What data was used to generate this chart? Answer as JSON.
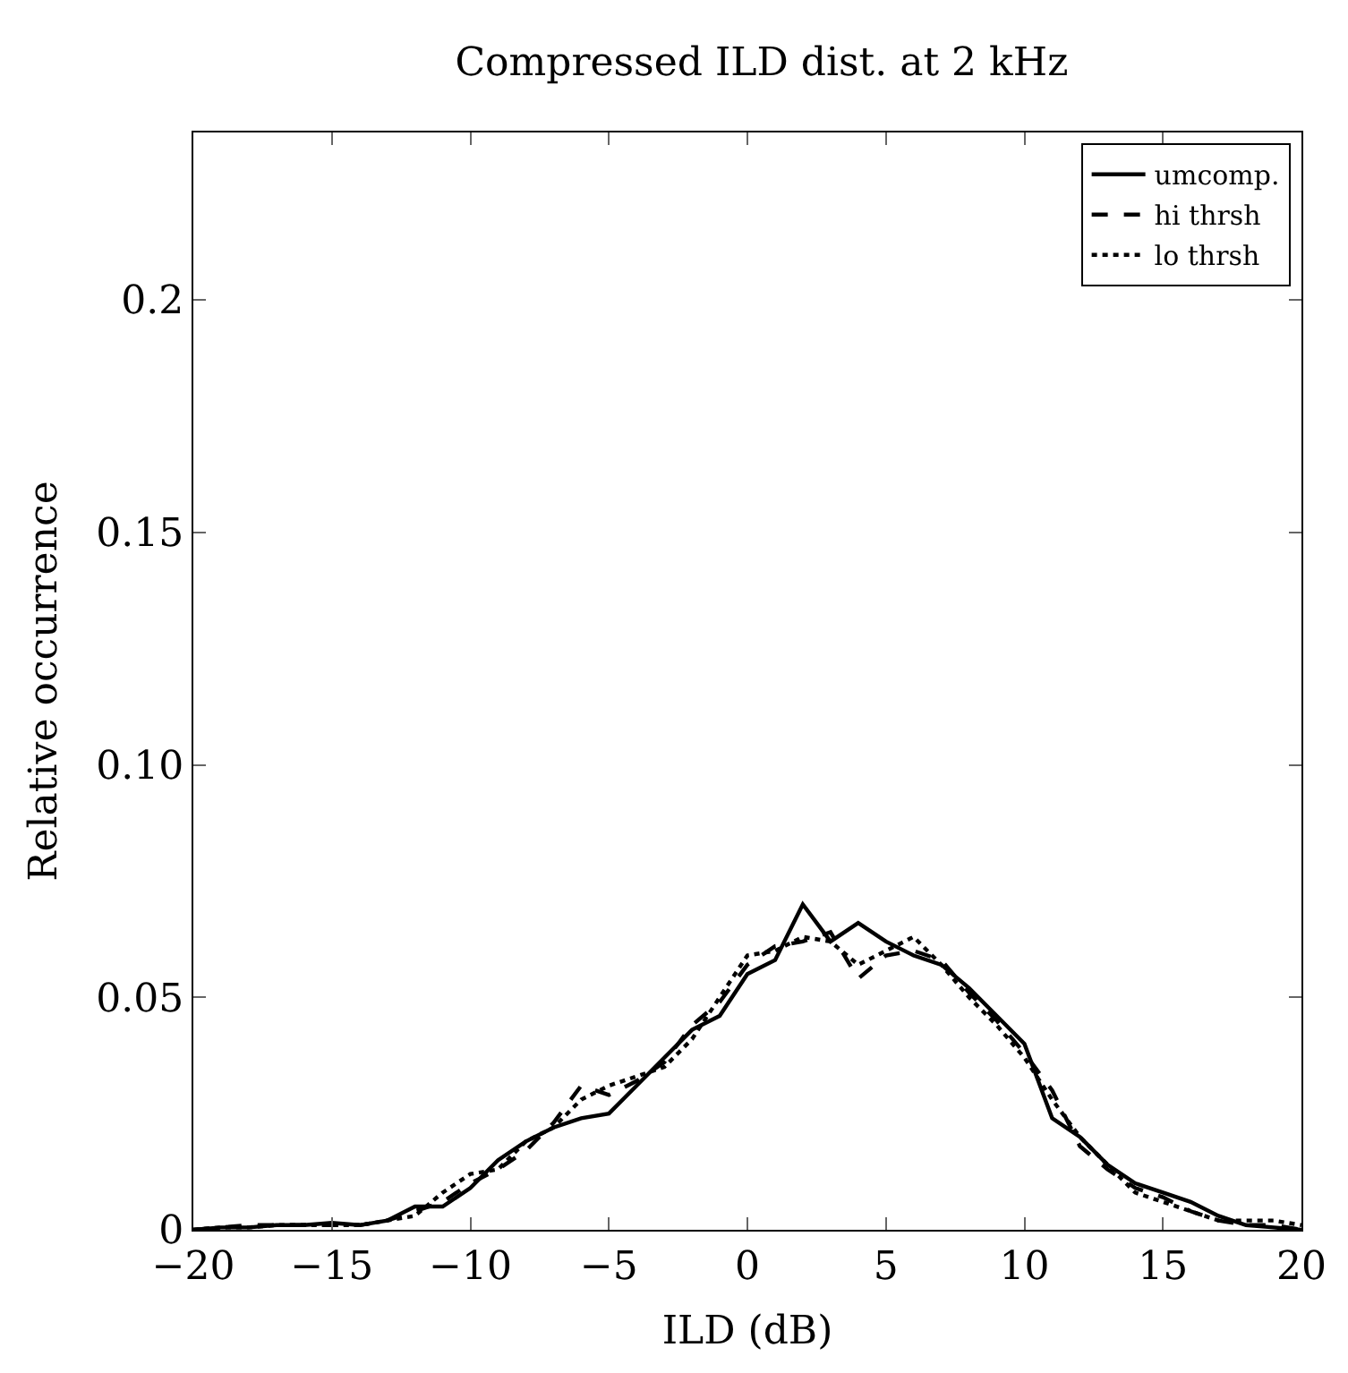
{
  "chart_data": {
    "type": "line",
    "title": "Compressed ILD dist. at 2 kHz",
    "xlabel": "ILD (dB)",
    "ylabel": "Relative occurrence",
    "x": [
      -20,
      -19,
      -18,
      -17,
      -16,
      -15,
      -14,
      -13,
      -12,
      -11,
      -10,
      -9,
      -8,
      -7,
      -6,
      -5,
      -4,
      -3,
      -2,
      -1,
      0,
      1,
      2,
      3,
      4,
      5,
      6,
      7,
      8,
      9,
      10,
      11,
      12,
      13,
      14,
      15,
      16,
      17,
      18,
      19,
      20
    ],
    "series": [
      {
        "name": "umcomp.",
        "color": "#000000",
        "line_style": "solid",
        "values": [
          0,
          0.0005,
          0.0005,
          0.001,
          0.001,
          0.0015,
          0.001,
          0.002,
          0.005,
          0.005,
          0.009,
          0.015,
          0.019,
          0.022,
          0.024,
          0.025,
          0.031,
          0.037,
          0.043,
          0.046,
          0.055,
          0.058,
          0.07,
          0.062,
          0.066,
          0.062,
          0.059,
          0.057,
          0.052,
          0.046,
          0.04,
          0.024,
          0.02,
          0.014,
          0.01,
          0.008,
          0.006,
          0.003,
          0.001,
          0.0005,
          0
        ]
      },
      {
        "name": "hi thrsh",
        "color": "#000000",
        "line_style": "dashed",
        "values": [
          0,
          0.0005,
          0.001,
          0.001,
          0.001,
          0.001,
          0.001,
          0.002,
          0.004,
          0.006,
          0.01,
          0.013,
          0.017,
          0.023,
          0.031,
          0.029,
          0.032,
          0.036,
          0.044,
          0.049,
          0.057,
          0.061,
          0.062,
          0.064,
          0.054,
          0.059,
          0.06,
          0.058,
          0.051,
          0.045,
          0.038,
          0.03,
          0.018,
          0.013,
          0.009,
          0.007,
          0.004,
          0.002,
          0.001,
          0.001,
          0
        ]
      },
      {
        "name": "lo thrsh",
        "color": "#000000",
        "line_style": "dotted",
        "values": [
          0,
          0.0005,
          0.0005,
          0.001,
          0.001,
          0.001,
          0.001,
          0.002,
          0.003,
          0.008,
          0.012,
          0.013,
          0.019,
          0.022,
          0.028,
          0.031,
          0.033,
          0.035,
          0.041,
          0.05,
          0.059,
          0.06,
          0.063,
          0.062,
          0.057,
          0.06,
          0.063,
          0.057,
          0.05,
          0.044,
          0.037,
          0.028,
          0.02,
          0.014,
          0.008,
          0.006,
          0.004,
          0.002,
          0.002,
          0.002,
          0.001
        ]
      }
    ],
    "xlim": [
      -20,
      20
    ],
    "ylim": [
      0,
      0.236
    ],
    "xticks": [
      {
        "value": -20,
        "label": "−20"
      },
      {
        "value": -15,
        "label": "−15"
      },
      {
        "value": -10,
        "label": "−10"
      },
      {
        "value": -5,
        "label": "−5"
      },
      0,
      5,
      10,
      15,
      20
    ],
    "yticks": [
      0,
      0.05,
      {
        "value": 0.1,
        "label": "0.10"
      },
      0.15,
      0.2
    ],
    "legend": "top right",
    "marker": "none"
  }
}
